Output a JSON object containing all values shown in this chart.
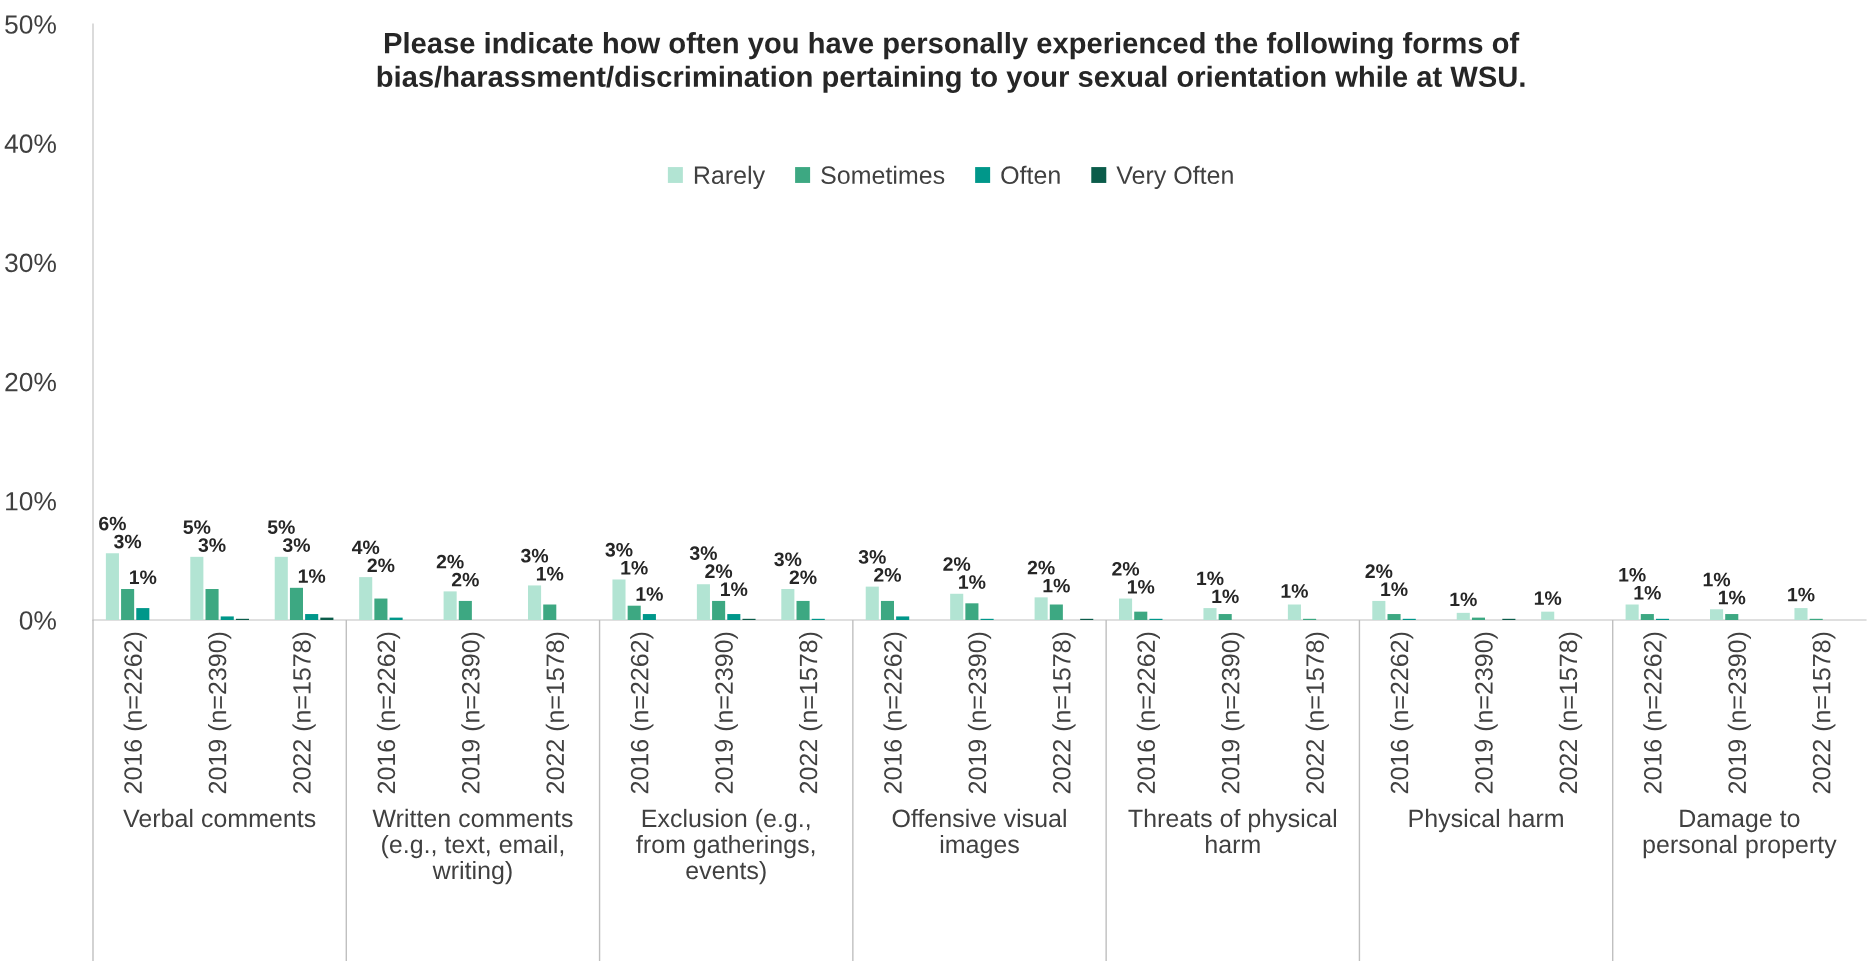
{
  "chart_data": {
    "type": "bar",
    "title": "Please indicate how often you have personally experienced the following forms of bias/harassment/discrimination pertaining to your sexual orientation while at WSU.",
    "categories": [
      "2016 (n=2262)",
      "2019 (n=2390)",
      "2022 (n=1578)",
      "2016 (n=2262)",
      "2019 (n=2390)",
      "2022 (n=1578)",
      "2016 (n=2262)",
      "2019 (n=2390)",
      "2022 (n=1578)",
      "2016 (n=2262)",
      "2019 (n=2390)",
      "2022 (n=1578)",
      "2016 (n=2262)",
      "2019 (n=2390)",
      "2022 (n=1578)",
      "2016 (n=2262)",
      "2019 (n=2390)",
      "2022 (n=1578)",
      "2016 (n=2262)",
      "2019 (n=2390)",
      "2022 (n=1578)"
    ],
    "annotations": [
      "Verbal comments",
      "Written comments (e.g., text, email, writing)",
      "Exclusion (e.g., from gatherings, events)",
      "Offensive visual images",
      "Threats of physical harm",
      "Physical harm",
      "Damage to personal property"
    ],
    "series": [
      {
        "name": "Rarely",
        "color": "#b2e4d3",
        "values": [
          5.6,
          5.3,
          5.3,
          3.6,
          2.4,
          2.9,
          3.4,
          3.0,
          2.6,
          2.8,
          2.2,
          1.9,
          1.8,
          1.0,
          1.3,
          1.6,
          0.6,
          0.7,
          1.3,
          0.9,
          1.0
        ],
        "value_labels": [
          "6%",
          "5%",
          "5%",
          "4%",
          "2%",
          "3%",
          "3%",
          "3%",
          "3%",
          "3%",
          "2%",
          "2%",
          "2%",
          "1%",
          "1%",
          "2%",
          "1%",
          "1%",
          "1%",
          "1%",
          "1%"
        ]
      },
      {
        "name": "Sometimes",
        "color": "#3da882",
        "values": [
          2.6,
          2.6,
          2.7,
          1.8,
          1.6,
          1.3,
          1.2,
          1.6,
          1.6,
          1.6,
          1.4,
          1.3,
          0.7,
          0.5,
          0.1,
          0.5,
          0.2,
          null,
          0.5,
          0.5,
          0.1
        ],
        "value_labels": [
          "3%",
          "3%",
          "3%",
          "2%",
          "2%",
          "1%",
          "1%",
          "2%",
          "2%",
          "2%",
          "1%",
          "1%",
          "1%",
          "1%",
          null,
          "1%",
          null,
          null,
          "1%",
          "1%",
          null
        ]
      },
      {
        "name": "Often",
        "color": "#00978a",
        "values": [
          1.0,
          0.3,
          0.5,
          0.2,
          null,
          null,
          0.5,
          0.5,
          0.1,
          0.3,
          0.1,
          null,
          0.1,
          null,
          null,
          0.1,
          null,
          null,
          0.1,
          null,
          null
        ],
        "value_labels": [
          "1%",
          null,
          "1%",
          null,
          null,
          null,
          "1%",
          "1%",
          null,
          null,
          null,
          null,
          null,
          null,
          null,
          null,
          null,
          null,
          null,
          null,
          null
        ]
      },
      {
        "name": "Very Often",
        "color": "#0b5c4a",
        "values": [
          null,
          0.1,
          0.2,
          null,
          null,
          null,
          null,
          0.1,
          null,
          null,
          null,
          0.1,
          null,
          null,
          null,
          null,
          0.1,
          null,
          null,
          null,
          null
        ]
      }
    ],
    "ylim": [
      0,
      50
    ],
    "yticks": [
      {
        "value": 0,
        "label": "0%"
      },
      {
        "value": 10,
        "label": "10%"
      },
      {
        "value": 20,
        "label": "20%"
      },
      {
        "value": 30,
        "label": "30%"
      },
      {
        "value": 40,
        "label": "40%"
      },
      {
        "value": 50,
        "label": "50%"
      }
    ],
    "legend": "top"
  }
}
